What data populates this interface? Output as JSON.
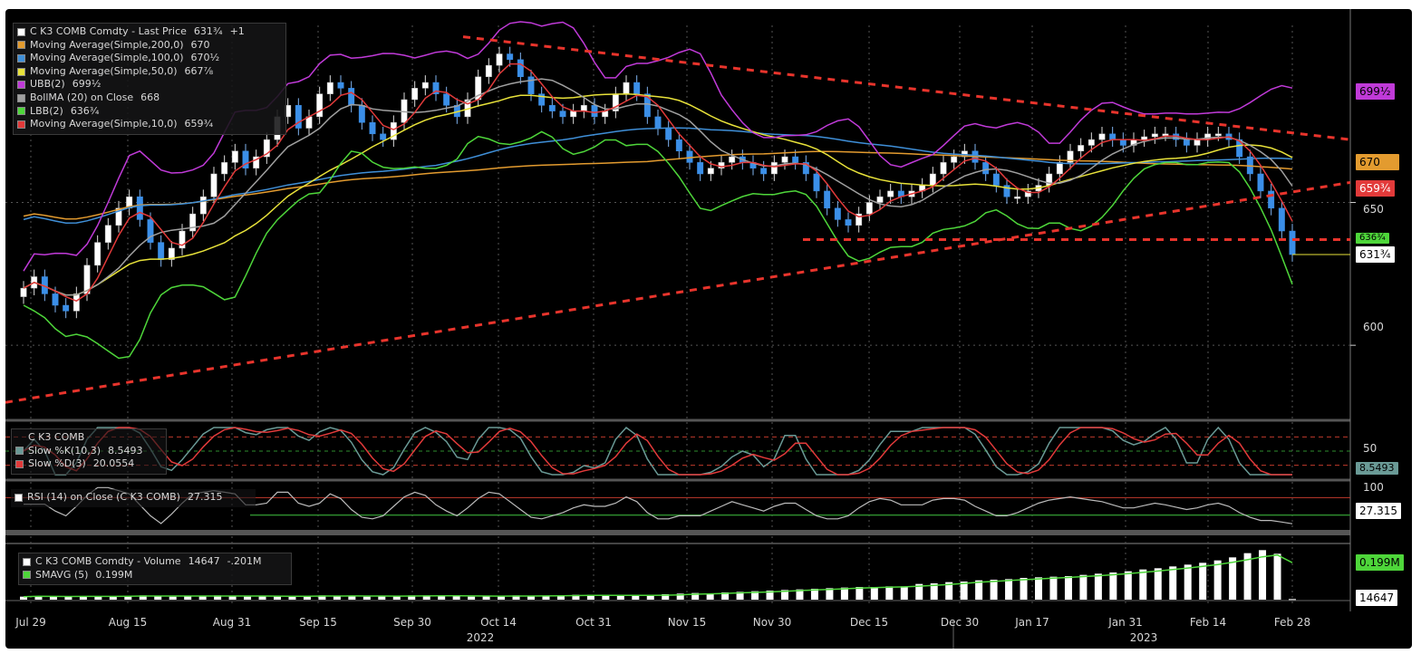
{
  "legend_main": [
    {
      "label": "C K3 COMB Comdty - Last Price",
      "value": "631¾",
      "extra": "+1",
      "color": "#ffffff"
    },
    {
      "label": "Moving Average(Simple,200,0)",
      "value": "670",
      "color": "#e39b2f"
    },
    {
      "label": "Moving Average(Simple,100,0)",
      "value": "670⅟₂",
      "color": "#3f8fd8"
    },
    {
      "label": "Moving Average(Simple,50,0)",
      "value": "667⅞",
      "color": "#e8e23a"
    },
    {
      "label": "UBB(2)",
      "value": "699⅟₂",
      "color": "#c03ad8"
    },
    {
      "label": "BollMA (20)  on Close",
      "value": "668",
      "color": "#a0a0a0"
    },
    {
      "label": "LBB(2)",
      "value": "636¾",
      "color": "#4ed63a"
    },
    {
      "label": "Moving Average(Simple,10,0)",
      "value": "659¾",
      "color": "#e23a3a"
    }
  ],
  "legend_stoch": [
    {
      "label": "C K3 COMB",
      "value": "",
      "color": ""
    },
    {
      "label": "Slow %K(10,3)",
      "value": "8.5493",
      "color": "#6a9a96"
    },
    {
      "label": "Slow %D(3)",
      "value": "20.0554",
      "color": "#e23a3a"
    }
  ],
  "legend_rsi": {
    "label": "RSI (14)  on Close (C K3 COMB)",
    "value": "27.315",
    "color": "#ffffff"
  },
  "legend_vol": [
    {
      "label": "C K3 COMB Comdty - Volume",
      "value": "14647",
      "extra": "-.201M",
      "color": "#ffffff"
    },
    {
      "label": "SMAVG (5)",
      "value": "0.199M",
      "color": "#4ed63a"
    }
  ],
  "tags": {
    "ubb": "699⅟₂",
    "ma200": "670",
    "ma10": "659¾",
    "lbb": "636¾",
    "last": "631¾",
    "stoch": "8.5493",
    "rsi": "27.315",
    "vol_ma": "0.199M",
    "vol": "14647"
  },
  "price_axis": [
    "650",
    "600"
  ],
  "stoch_axis": [
    "50"
  ],
  "rsi_axis": [
    "100"
  ],
  "dates": [
    "Jul 29",
    "Aug 15",
    "Aug 31",
    "Sep 15",
    "Sep 30",
    "Oct 14",
    "Oct 31",
    "Nov 15",
    "Nov 30",
    "Dec 15",
    "Dec 30",
    "Jan 17",
    "Jan 31",
    "Feb 14",
    "Feb 28"
  ],
  "years": [
    "2022",
    "2023"
  ],
  "colors": {
    "up": "#ffffff",
    "down": "#3b8fe8",
    "red_dash": "#e8342c"
  },
  "chart_data": {
    "type": "candlestick",
    "price_range": [
      575,
      712
    ],
    "closes": [
      620,
      624,
      618,
      614,
      612,
      618,
      628,
      636,
      642,
      648,
      652,
      644,
      636,
      630,
      634,
      640,
      646,
      652,
      660,
      664,
      668,
      662,
      666,
      672,
      680,
      684,
      676,
      680,
      688,
      692,
      690,
      684,
      678,
      674,
      672,
      678,
      686,
      690,
      692,
      688,
      684,
      680,
      686,
      694,
      698,
      702,
      700,
      694,
      688,
      684,
      682,
      680,
      682,
      684,
      680,
      682,
      688,
      692,
      688,
      680,
      676,
      672,
      668,
      664,
      660,
      662,
      664,
      666,
      664,
      662,
      660,
      664,
      666,
      664,
      660,
      654,
      648,
      644,
      642,
      646,
      650,
      652,
      654,
      652,
      654,
      656,
      660,
      664,
      666,
      668,
      664,
      660,
      656,
      652,
      652,
      654,
      656,
      660,
      664,
      668,
      670,
      672,
      674,
      672,
      670,
      672,
      673,
      674,
      674,
      672,
      670,
      672,
      674,
      674,
      672,
      666,
      660,
      654,
      648,
      640,
      631.75
    ],
    "volume_M": [
      0.05,
      0.06,
      0.05,
      0.05,
      0.06,
      0.05,
      0.06,
      0.06,
      0.07,
      0.06,
      0.05,
      0.06,
      0.06,
      0.07,
      0.06,
      0.05,
      0.06,
      0.05,
      0.06,
      0.06,
      0.07,
      0.06,
      0.06,
      0.05,
      0.06,
      0.06,
      0.07,
      0.07,
      0.06,
      0.06,
      0.05,
      0.06,
      0.06,
      0.07,
      0.06,
      0.06,
      0.07,
      0.08,
      0.08,
      0.07,
      0.06,
      0.07,
      0.08,
      0.09,
      0.1,
      0.11,
      0.1,
      0.12,
      0.13,
      0.14,
      0.15,
      0.16,
      0.17,
      0.18,
      0.19,
      0.2,
      0.21,
      0.21,
      0.22,
      0.22,
      0.26,
      0.27,
      0.29,
      0.3,
      0.32,
      0.33,
      0.34,
      0.36,
      0.37,
      0.38,
      0.39,
      0.41,
      0.43,
      0.45,
      0.47,
      0.5,
      0.52,
      0.55,
      0.58,
      0.61,
      0.65,
      0.7,
      0.77,
      0.82,
      0.76,
      0.01
    ],
    "series": [
      {
        "name": "UBB(2)",
        "last": 699.5
      },
      {
        "name": "Moving Average(Simple,200,0)",
        "last": 670
      },
      {
        "name": "Moving Average(Simple,100,0)",
        "last": 670.5
      },
      {
        "name": "Moving Average(Simple,50,0)",
        "last": 667.875
      },
      {
        "name": "BollMA (20)  on Close",
        "last": 668
      },
      {
        "name": "LBB(2)",
        "last": 636.75
      },
      {
        "name": "Moving Average(Simple,10,0)",
        "last": 659.75
      }
    ],
    "stochastic": {
      "k_last": 8.5493,
      "d_last": 20.0554
    },
    "rsi": {
      "last": 27.315
    }
  }
}
